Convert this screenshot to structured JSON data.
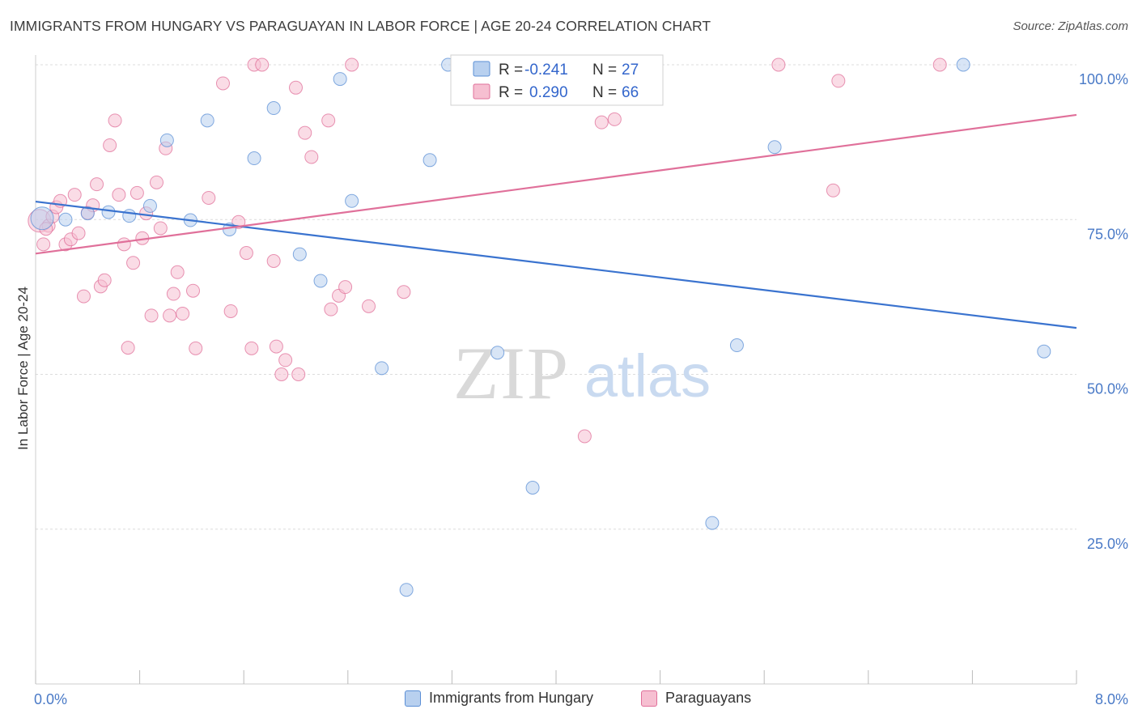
{
  "title": "IMMIGRANTS FROM HUNGARY VS PARAGUAYAN IN LABOR FORCE | AGE 20-24 CORRELATION CHART",
  "source": "Source: ZipAtlas.com",
  "watermark": {
    "zip": "ZIP",
    "atlas": "atlas"
  },
  "chart_data": {
    "type": "scatter",
    "title": "IMMIGRANTS FROM HUNGARY VS PARAGUAYAN IN LABOR FORCE | AGE 20-24 CORRELATION CHART",
    "xlabel": "",
    "ylabel": "In Labor Force | Age 20-24",
    "xlim": [
      0,
      8
    ],
    "ylim": [
      0,
      100
    ],
    "x_tick_labels": [
      "0.0%",
      "8.0%"
    ],
    "y_ticks": [
      25,
      50,
      75,
      100
    ],
    "y_tick_labels": [
      "25.0%",
      "50.0%",
      "75.0%",
      "100.0%"
    ],
    "grid": true,
    "legend_position": "top-center",
    "series": [
      {
        "name": "Immigrants from Hungary",
        "color": "#5b8fd6",
        "fill": "#b8d0ef",
        "R": "-0.241",
        "N": "27",
        "trend": {
          "x": [
            0,
            8
          ],
          "y": [
            77.9,
            57.5
          ]
        },
        "points": [
          {
            "x": 0.05,
            "y": 75.2,
            "big": true
          },
          {
            "x": 0.23,
            "y": 75.0
          },
          {
            "x": 0.4,
            "y": 76.0
          },
          {
            "x": 0.56,
            "y": 76.2
          },
          {
            "x": 0.72,
            "y": 75.6
          },
          {
            "x": 0.88,
            "y": 77.2
          },
          {
            "x": 1.01,
            "y": 87.8
          },
          {
            "x": 1.19,
            "y": 74.9
          },
          {
            "x": 1.32,
            "y": 91.0
          },
          {
            "x": 1.49,
            "y": 73.4
          },
          {
            "x": 1.68,
            "y": 84.9
          },
          {
            "x": 1.83,
            "y": 93.0
          },
          {
            "x": 2.03,
            "y": 69.4
          },
          {
            "x": 2.19,
            "y": 65.1
          },
          {
            "x": 2.34,
            "y": 97.7
          },
          {
            "x": 2.43,
            "y": 78.0
          },
          {
            "x": 2.66,
            "y": 51.0
          },
          {
            "x": 2.85,
            "y": 15.2
          },
          {
            "x": 3.03,
            "y": 84.6
          },
          {
            "x": 3.17,
            "y": 100.0
          },
          {
            "x": 3.55,
            "y": 53.5
          },
          {
            "x": 3.82,
            "y": 31.7
          },
          {
            "x": 5.2,
            "y": 26.0
          },
          {
            "x": 5.39,
            "y": 54.7
          },
          {
            "x": 5.68,
            "y": 86.7
          },
          {
            "x": 7.13,
            "y": 100.0
          },
          {
            "x": 7.75,
            "y": 53.7
          }
        ]
      },
      {
        "name": "Paraguayans",
        "color": "#e0709a",
        "fill": "#f6bfd1",
        "R": "0.290",
        "N": "66",
        "trend": {
          "x": [
            0,
            8
          ],
          "y": [
            69.5,
            91.9
          ]
        },
        "points": [
          {
            "x": 0.03,
            "y": 74.8,
            "big": true
          },
          {
            "x": 0.06,
            "y": 71.0
          },
          {
            "x": 0.1,
            "y": 74.0
          },
          {
            "x": 0.13,
            "y": 75.5
          },
          {
            "x": 0.16,
            "y": 77.0
          },
          {
            "x": 0.19,
            "y": 78.0
          },
          {
            "x": 0.23,
            "y": 71.0
          },
          {
            "x": 0.27,
            "y": 71.8
          },
          {
            "x": 0.3,
            "y": 79.0
          },
          {
            "x": 0.33,
            "y": 72.8
          },
          {
            "x": 0.37,
            "y": 62.6
          },
          {
            "x": 0.4,
            "y": 76.1
          },
          {
            "x": 0.44,
            "y": 77.3
          },
          {
            "x": 0.47,
            "y": 80.7
          },
          {
            "x": 0.5,
            "y": 64.2
          },
          {
            "x": 0.53,
            "y": 65.2
          },
          {
            "x": 0.57,
            "y": 87.0
          },
          {
            "x": 0.61,
            "y": 91.0
          },
          {
            "x": 0.64,
            "y": 79.0
          },
          {
            "x": 0.68,
            "y": 71.0
          },
          {
            "x": 0.71,
            "y": 54.3
          },
          {
            "x": 0.75,
            "y": 68.0
          },
          {
            "x": 0.78,
            "y": 79.3
          },
          {
            "x": 0.82,
            "y": 72.0
          },
          {
            "x": 0.85,
            "y": 76.0
          },
          {
            "x": 0.89,
            "y": 59.5
          },
          {
            "x": 0.93,
            "y": 81.0
          },
          {
            "x": 0.96,
            "y": 73.6
          },
          {
            "x": 1.0,
            "y": 86.5
          },
          {
            "x": 1.03,
            "y": 59.5
          },
          {
            "x": 1.06,
            "y": 63.0
          },
          {
            "x": 1.09,
            "y": 66.5
          },
          {
            "x": 1.13,
            "y": 59.8
          },
          {
            "x": 1.21,
            "y": 63.5
          },
          {
            "x": 1.23,
            "y": 54.2
          },
          {
            "x": 1.33,
            "y": 78.5
          },
          {
            "x": 1.44,
            "y": 97.0
          },
          {
            "x": 1.5,
            "y": 60.2
          },
          {
            "x": 1.56,
            "y": 74.6
          },
          {
            "x": 1.62,
            "y": 69.6
          },
          {
            "x": 1.66,
            "y": 54.2
          },
          {
            "x": 1.68,
            "y": 100.0
          },
          {
            "x": 1.74,
            "y": 100.0
          },
          {
            "x": 1.83,
            "y": 68.3
          },
          {
            "x": 1.85,
            "y": 54.5
          },
          {
            "x": 1.89,
            "y": 50.0
          },
          {
            "x": 1.92,
            "y": 52.3
          },
          {
            "x": 2.0,
            "y": 96.3
          },
          {
            "x": 2.02,
            "y": 50.0
          },
          {
            "x": 2.07,
            "y": 89.0
          },
          {
            "x": 2.12,
            "y": 85.1
          },
          {
            "x": 2.25,
            "y": 91.0
          },
          {
            "x": 2.27,
            "y": 60.5
          },
          {
            "x": 2.33,
            "y": 62.7
          },
          {
            "x": 2.38,
            "y": 64.1
          },
          {
            "x": 2.43,
            "y": 100.0
          },
          {
            "x": 2.56,
            "y": 61.0
          },
          {
            "x": 2.83,
            "y": 63.3
          },
          {
            "x": 4.22,
            "y": 40.0
          },
          {
            "x": 4.35,
            "y": 90.7
          },
          {
            "x": 4.45,
            "y": 91.2
          },
          {
            "x": 5.71,
            "y": 100.0
          },
          {
            "x": 6.13,
            "y": 79.7
          },
          {
            "x": 6.17,
            "y": 97.4
          },
          {
            "x": 6.95,
            "y": 100.0
          },
          {
            "x": 0.08,
            "y": 73.5
          }
        ]
      }
    ]
  }
}
